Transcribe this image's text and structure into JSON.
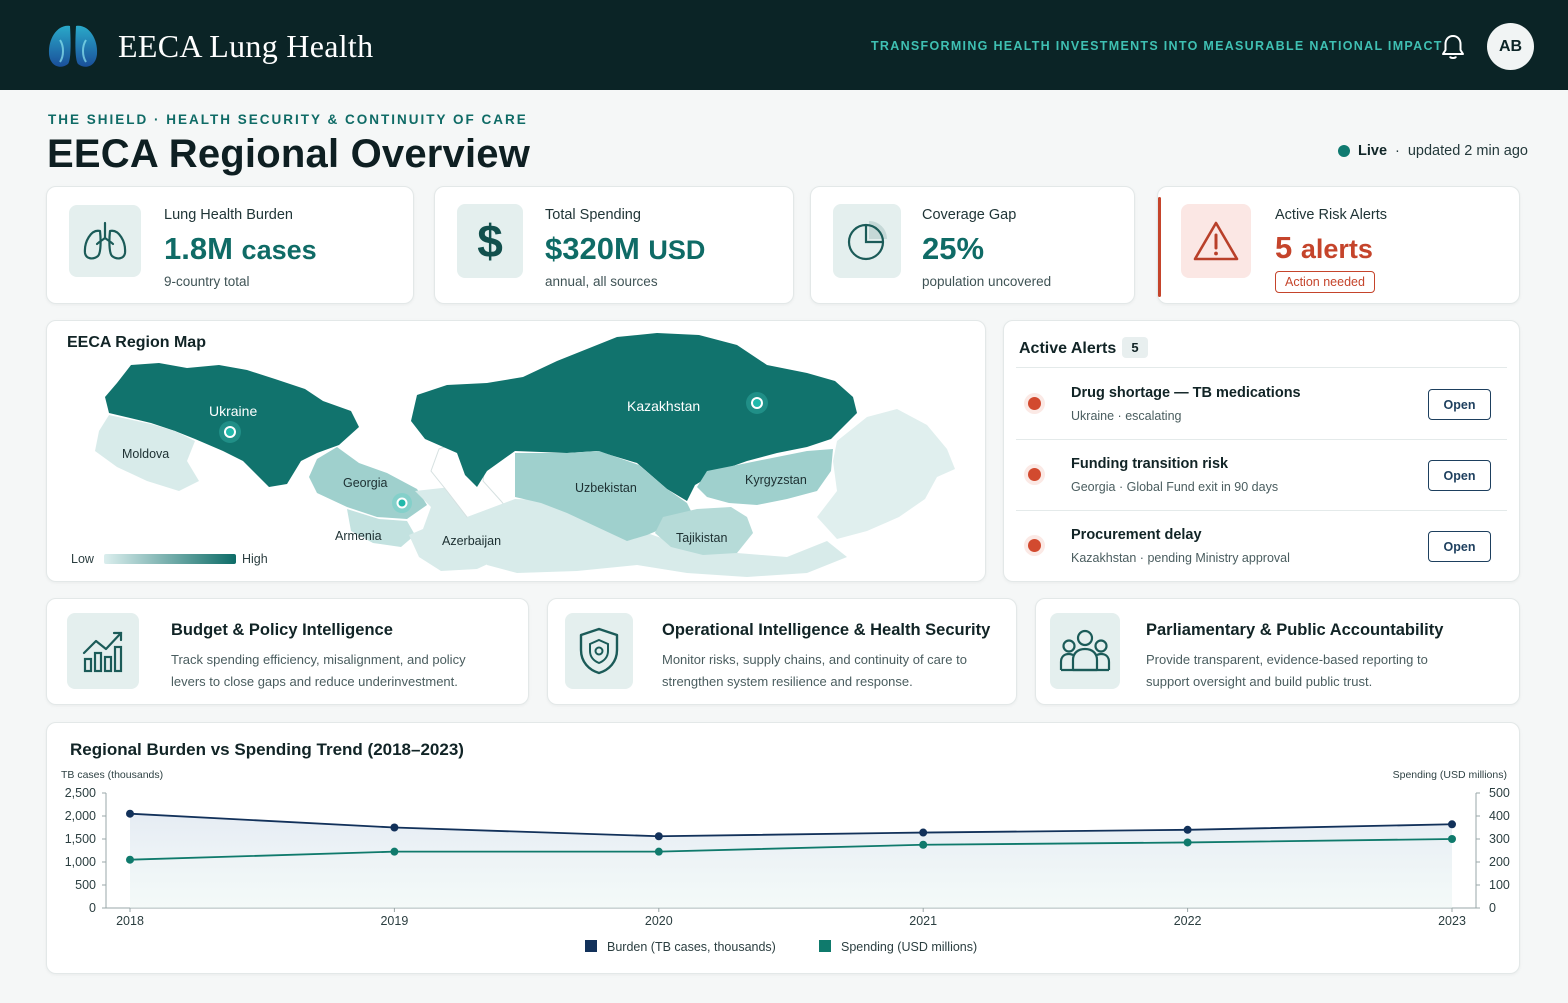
{
  "header": {
    "app_title": "EECA Lung Health",
    "tagline": "TRANSFORMING HEALTH INVESTMENTS INTO MEASURABLE NATIONAL IMPACT",
    "avatar_initials": "AB",
    "icons": [
      "lungs-logo-icon",
      "bell-icon"
    ]
  },
  "page": {
    "eyebrow": "THE SHIELD · HEALTH SECURITY & CONTINUITY OF CARE",
    "title": "EECA Regional Overview",
    "live_label": "Live",
    "live_sep": "·",
    "updated": "updated 2 min ago"
  },
  "kpis": [
    {
      "label": "Lung Health Burden",
      "value": "1.8M",
      "unit": "cases",
      "sub": "9-country total",
      "icon": "lungs-icon"
    },
    {
      "label": "Total Spending",
      "value": "$320M",
      "unit": "USD",
      "sub": "annual, all sources",
      "icon": "dollar-icon"
    },
    {
      "label": "Coverage Gap",
      "value": "25%",
      "unit": "",
      "sub": "population uncovered",
      "icon": "pie-icon"
    },
    {
      "label": "Active Risk Alerts",
      "value": "5",
      "unit": "alerts",
      "badge": "Action needed",
      "icon": "warning-icon"
    }
  ],
  "map": {
    "title": "EECA Region Map",
    "legend_low": "Low",
    "legend_high": "High",
    "countries": [
      {
        "name": "Ukraine",
        "level": "high",
        "hotspot": true
      },
      {
        "name": "Moldova",
        "level": "low"
      },
      {
        "name": "Georgia",
        "level": "medium",
        "hotspot": true
      },
      {
        "name": "Armenia",
        "level": "low"
      },
      {
        "name": "Azerbaijan",
        "level": "low"
      },
      {
        "name": "Kazakhstan",
        "level": "high",
        "hotspot": true
      },
      {
        "name": "Uzbekistan",
        "level": "medium"
      },
      {
        "name": "Kyrgyzstan",
        "level": "medium"
      },
      {
        "name": "Tajikistan",
        "level": "medium"
      }
    ],
    "colors": {
      "high": "#11736d",
      "medium": "#9fd0cd",
      "low": "#d8ebea"
    }
  },
  "alerts": {
    "title": "Active Alerts",
    "count": "5",
    "items": [
      {
        "title": "Drug shortage — TB medications",
        "country": "Ukraine",
        "detail": "escalating",
        "action": "Open"
      },
      {
        "title": "Funding transition risk",
        "country": "Georgia",
        "detail": "Global Fund exit in 90 days",
        "action": "Open"
      },
      {
        "title": "Procurement delay",
        "country": "Kazakhstan",
        "detail": "pending Ministry approval",
        "action": "Open"
      }
    ]
  },
  "intel": [
    {
      "title": "Budget & Policy Intelligence",
      "desc": "Track spending efficiency, misalignment, and policy levers to close gaps and reduce underinvestment.",
      "icon": "bar-chart-icon"
    },
    {
      "title": "Operational Intelligence & Health Security",
      "desc": "Monitor risks, supply chains, and continuity of care to strengthen system resilience and response.",
      "icon": "shield-icon"
    },
    {
      "title": "Parliamentary & Public Accountability",
      "desc": "Provide transparent, evidence-based reporting to support oversight and build public trust.",
      "icon": "people-icon"
    }
  ],
  "chart_data": {
    "type": "line",
    "title": "Regional Burden vs Spending Trend (2018–2023)",
    "ylabel_left": "TB cases (thousands)",
    "ylabel_right": "Spending (USD millions)",
    "x": [
      "2018",
      "2019",
      "2020",
      "2021",
      "2022",
      "2023"
    ],
    "y_left_ticks": [
      "0",
      "500",
      "1,000",
      "1,500",
      "2,000",
      "2,500"
    ],
    "y_right_ticks": [
      "0",
      "100",
      "200",
      "300",
      "400",
      "500"
    ],
    "ylim_left": [
      0,
      2500
    ],
    "ylim_right": [
      0,
      500
    ],
    "series": [
      {
        "name": "Burden (TB cases, thousands)",
        "axis": "left",
        "values": [
          2050,
          1750,
          1560,
          1640,
          1700,
          1820
        ],
        "color": "#12315a"
      },
      {
        "name": "Spending (USD millions)",
        "axis": "right",
        "values": [
          210,
          245,
          245,
          275,
          285,
          300
        ],
        "color": "#0f7a6c"
      }
    ],
    "legend": "bottom-center",
    "grid": false
  }
}
